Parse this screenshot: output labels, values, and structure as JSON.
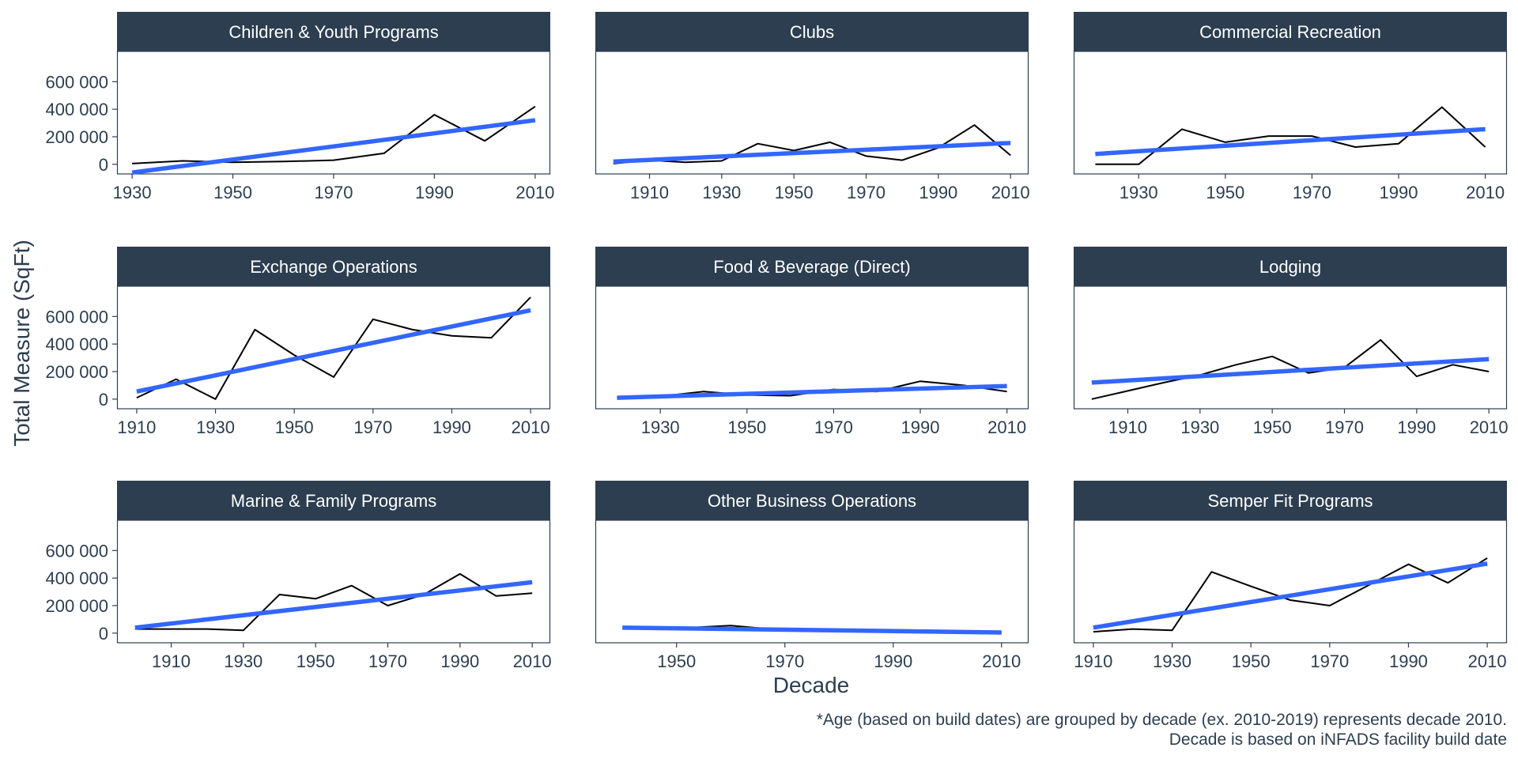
{
  "chart_data": {
    "type": "line",
    "layout": "facet-grid-3x3",
    "xlabel": "Decade",
    "ylabel": "Total Measure (SqFt)",
    "y_ticks": [
      0,
      200000,
      400000,
      600000
    ],
    "y_tick_labels": [
      "0",
      "200 000",
      "400 000",
      "600 000"
    ],
    "ylim": [
      -70000,
      820000
    ],
    "caption_lines": [
      "*Age (based on build dates) are grouped by decade (ex. 2010-2019) represents decade 2010.",
      "Decade is based on iNFADS facility build date"
    ],
    "colors": {
      "strip": "#2c3e50",
      "trend": "#3366ff",
      "line": "#000000",
      "panel_border": "#2c3e50"
    },
    "panels": [
      {
        "name": "Children & Youth Programs",
        "xlim": [
          1927,
          2013
        ],
        "x_ticks": [
          1930,
          1950,
          1970,
          1990,
          2010
        ],
        "x": [
          1930,
          1940,
          1950,
          1960,
          1970,
          1980,
          1990,
          2000,
          2010
        ],
        "y": [
          5000,
          25000,
          15000,
          20000,
          30000,
          80000,
          360000,
          170000,
          420000
        ],
        "trend": [
          -60000,
          320000
        ]
      },
      {
        "name": "Clubs",
        "xlim": [
          1895,
          2015
        ],
        "x_ticks": [
          1910,
          1930,
          1950,
          1970,
          1990,
          2010
        ],
        "x": [
          1900,
          1910,
          1920,
          1930,
          1940,
          1950,
          1960,
          1970,
          1980,
          1990,
          2000,
          2010
        ],
        "y": [
          5000,
          30000,
          15000,
          25000,
          150000,
          100000,
          160000,
          60000,
          30000,
          120000,
          285000,
          65000
        ],
        "trend": [
          20000,
          155000
        ]
      },
      {
        "name": "Commercial Recreation",
        "xlim": [
          1915,
          2015
        ],
        "x_ticks": [
          1930,
          1950,
          1970,
          1990,
          2010
        ],
        "x": [
          1920,
          1930,
          1940,
          1950,
          1960,
          1970,
          1980,
          1990,
          2000,
          2010
        ],
        "y": [
          0,
          0,
          255000,
          160000,
          205000,
          205000,
          125000,
          150000,
          415000,
          125000
        ],
        "trend": [
          75000,
          255000
        ]
      },
      {
        "name": "Exchange Operations",
        "xlim": [
          1905,
          2015
        ],
        "x_ticks": [
          1910,
          1930,
          1950,
          1970,
          1990,
          2010
        ],
        "x": [
          1910,
          1920,
          1930,
          1940,
          1950,
          1960,
          1970,
          1980,
          1990,
          2000,
          2010
        ],
        "y": [
          10000,
          145000,
          0,
          505000,
          320000,
          160000,
          580000,
          505000,
          460000,
          445000,
          740000
        ],
        "trend": [
          55000,
          645000
        ]
      },
      {
        "name": "Food & Beverage (Direct)",
        "xlim": [
          1915,
          2015
        ],
        "x_ticks": [
          1930,
          1950,
          1970,
          1990,
          2010
        ],
        "x": [
          1920,
          1930,
          1940,
          1950,
          1960,
          1970,
          1980,
          1990,
          2000,
          2010
        ],
        "y": [
          10000,
          20000,
          55000,
          30000,
          25000,
          70000,
          55000,
          130000,
          100000,
          55000
        ],
        "trend": [
          10000,
          95000
        ]
      },
      {
        "name": "Lodging",
        "xlim": [
          1895,
          2015
        ],
        "x_ticks": [
          1910,
          1930,
          1950,
          1970,
          1990,
          2010
        ],
        "x": [
          1900,
          1910,
          1920,
          1930,
          1940,
          1950,
          1960,
          1970,
          1980,
          1990,
          2000,
          2010
        ],
        "y": [
          0,
          60000,
          120000,
          175000,
          250000,
          310000,
          190000,
          230000,
          430000,
          165000,
          250000,
          200000
        ],
        "trend": [
          120000,
          290000
        ]
      },
      {
        "name": "Marine & Family Programs",
        "xlim": [
          1895,
          2015
        ],
        "x_ticks": [
          1910,
          1930,
          1950,
          1970,
          1990,
          2010
        ],
        "x": [
          1900,
          1910,
          1920,
          1930,
          1940,
          1950,
          1960,
          1970,
          1980,
          1990,
          2000,
          2010
        ],
        "y": [
          30000,
          30000,
          30000,
          20000,
          280000,
          250000,
          345000,
          200000,
          280000,
          430000,
          270000,
          290000
        ],
        "trend": [
          40000,
          370000
        ]
      },
      {
        "name": "Other Business Operations",
        "xlim": [
          1935,
          2015
        ],
        "x_ticks": [
          1950,
          1970,
          1990,
          2010
        ],
        "x": [
          1940,
          1950,
          1960,
          1970,
          1980,
          1990,
          2000,
          2010
        ],
        "y": [
          40000,
          35000,
          55000,
          20000,
          15000,
          10000,
          5000,
          5000
        ],
        "trend": [
          40000,
          5000
        ]
      },
      {
        "name": "Semper Fit Programs",
        "xlim": [
          1905,
          2015
        ],
        "x_ticks": [
          1910,
          1930,
          1950,
          1970,
          1990,
          2010
        ],
        "x": [
          1910,
          1920,
          1930,
          1940,
          1950,
          1960,
          1970,
          1980,
          1990,
          2000,
          2010
        ],
        "y": [
          10000,
          30000,
          20000,
          445000,
          340000,
          240000,
          200000,
          350000,
          500000,
          365000,
          545000
        ],
        "trend": [
          40000,
          505000
        ]
      }
    ]
  }
}
